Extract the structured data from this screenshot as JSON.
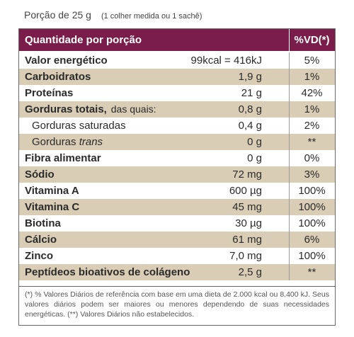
{
  "serving": {
    "label": "Porção de 25 g",
    "note": "(1 colher medida ou 1 sachê)"
  },
  "header": {
    "quantity_label": "Quantidade por porção",
    "vd_label": "%VD(*)"
  },
  "rows": [
    {
      "name": "Valor energético",
      "suffix": "",
      "qty": "99kcal = 416kJ",
      "vd": "5%"
    },
    {
      "name": "Carboidratos",
      "suffix": "",
      "qty": "1,9 g",
      "vd": "1%"
    },
    {
      "name": "Proteínas",
      "suffix": "",
      "qty": "21 g",
      "vd": "42%"
    },
    {
      "name": "Gorduras totais,",
      "suffix": " das quais:",
      "qty": "0,8 g",
      "vd": "1%"
    },
    {
      "name": "Gorduras saturadas",
      "suffix": "",
      "qty": "0,4 g",
      "vd": "2%"
    },
    {
      "name": "Gorduras ",
      "suffix": "trans",
      "qty": "0 g",
      "vd": "**"
    },
    {
      "name": "Fibra alimentar",
      "suffix": "",
      "qty": "0 g",
      "vd": "0%"
    },
    {
      "name": "Sódio",
      "suffix": "",
      "qty": "72 mg",
      "vd": "3%"
    },
    {
      "name": "Vitamina A",
      "suffix": "",
      "qty": "600 µg",
      "vd": "100%"
    },
    {
      "name": "Vitamina C",
      "suffix": "",
      "qty": "45 mg",
      "vd": "100%"
    },
    {
      "name": "Biotina",
      "suffix": "",
      "qty": "30 µg",
      "vd": "100%"
    },
    {
      "name": "Cálcio",
      "suffix": "",
      "qty": "61 mg",
      "vd": "6%"
    },
    {
      "name": "Zinco",
      "suffix": "",
      "qty": "7,0 mg",
      "vd": "100%"
    },
    {
      "name": "Peptídeos bioativos de colágeno",
      "suffix": "",
      "qty": "2,5 g",
      "vd": "**"
    }
  ],
  "footnote": "(*) % Valores Diários de referência com base em uma dieta de 2.000 kcal ou 8.400 kJ. Seus valores diários podem ser maiores ou menores dependendo de suas necessidades energéticas. (**) Valores Diários não estabelecidos.",
  "colors": {
    "header_bg": "#7b1d4b",
    "shade_bg": "#d9cdb6",
    "border": "#6a6a6a"
  }
}
